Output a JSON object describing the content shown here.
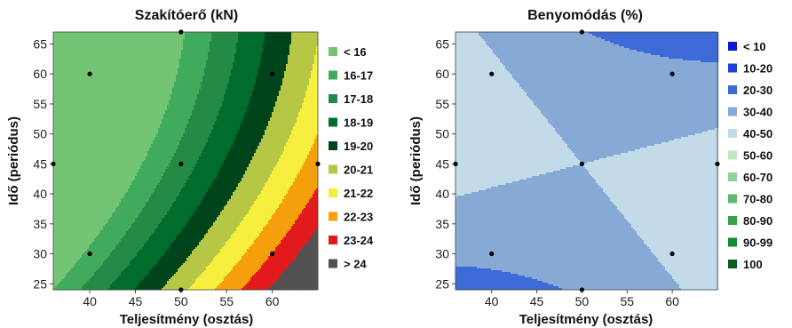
{
  "chart_data": [
    {
      "type": "contour",
      "title": "Szakítóerő (kN)",
      "xlabel": "Teljesítmény (osztás)",
      "ylabel": "Idő (periódus)",
      "xlim": [
        36,
        65
      ],
      "ylim": [
        24,
        67
      ],
      "xticks": [
        40,
        45,
        50,
        55,
        60
      ],
      "yticks": [
        25,
        30,
        35,
        40,
        45,
        50,
        55,
        60,
        65
      ],
      "legend_position": "right",
      "levels": [
        {
          "label": "< 16",
          "color": "#74c476"
        },
        {
          "label": "16-17",
          "color": "#41ab5d"
        },
        {
          "label": "17-18",
          "color": "#238b45"
        },
        {
          "label": "18-19",
          "color": "#006d2c"
        },
        {
          "label": "19-20",
          "color": "#00441b"
        },
        {
          "label": "20-21",
          "color": "#b5c744"
        },
        {
          "label": "21-22",
          "color": "#f6ef3d"
        },
        {
          "label": "22-23",
          "color": "#f59f0d"
        },
        {
          "label": "23-24",
          "color": "#e31a1c"
        },
        {
          "label": "> 24",
          "color": "#525252"
        }
      ],
      "design_points": [
        [
          36,
          45
        ],
        [
          40,
          30
        ],
        [
          40,
          60
        ],
        [
          50,
          24
        ],
        [
          50,
          45
        ],
        [
          50,
          67
        ],
        [
          60,
          30
        ],
        [
          60,
          60
        ],
        [
          65,
          45
        ]
      ]
    },
    {
      "type": "contour",
      "title": "Benyomódás (%)",
      "xlabel": "Teljesítmény (osztás)",
      "ylabel": "Idő (periódus)",
      "xlim": [
        36,
        65
      ],
      "ylim": [
        24,
        67
      ],
      "xticks": [
        40,
        45,
        50,
        55,
        60
      ],
      "yticks": [
        25,
        30,
        35,
        40,
        45,
        50,
        55,
        60,
        65
      ],
      "legend_position": "right",
      "levels": [
        {
          "label": "< 10",
          "color": "#0a1ad6"
        },
        {
          "label": "10-20",
          "color": "#1f3fe0"
        },
        {
          "label": "20-30",
          "color": "#3d6ad6"
        },
        {
          "label": "30-40",
          "color": "#86a9d6"
        },
        {
          "label": "40-50",
          "color": "#c3dbe9"
        },
        {
          "label": "50-60",
          "color": "#bfe8c2"
        },
        {
          "label": "60-70",
          "color": "#8fd39a"
        },
        {
          "label": "70-80",
          "color": "#5fb86e"
        },
        {
          "label": "80-90",
          "color": "#36a24a"
        },
        {
          "label": "90-99",
          "color": "#178a35"
        },
        {
          "label": "100",
          "color": "#0b5e22"
        }
      ],
      "design_points": [
        [
          36,
          45
        ],
        [
          40,
          30
        ],
        [
          40,
          60
        ],
        [
          50,
          24
        ],
        [
          50,
          45
        ],
        [
          50,
          67
        ],
        [
          60,
          30
        ],
        [
          60,
          60
        ],
        [
          65,
          45
        ]
      ]
    }
  ]
}
